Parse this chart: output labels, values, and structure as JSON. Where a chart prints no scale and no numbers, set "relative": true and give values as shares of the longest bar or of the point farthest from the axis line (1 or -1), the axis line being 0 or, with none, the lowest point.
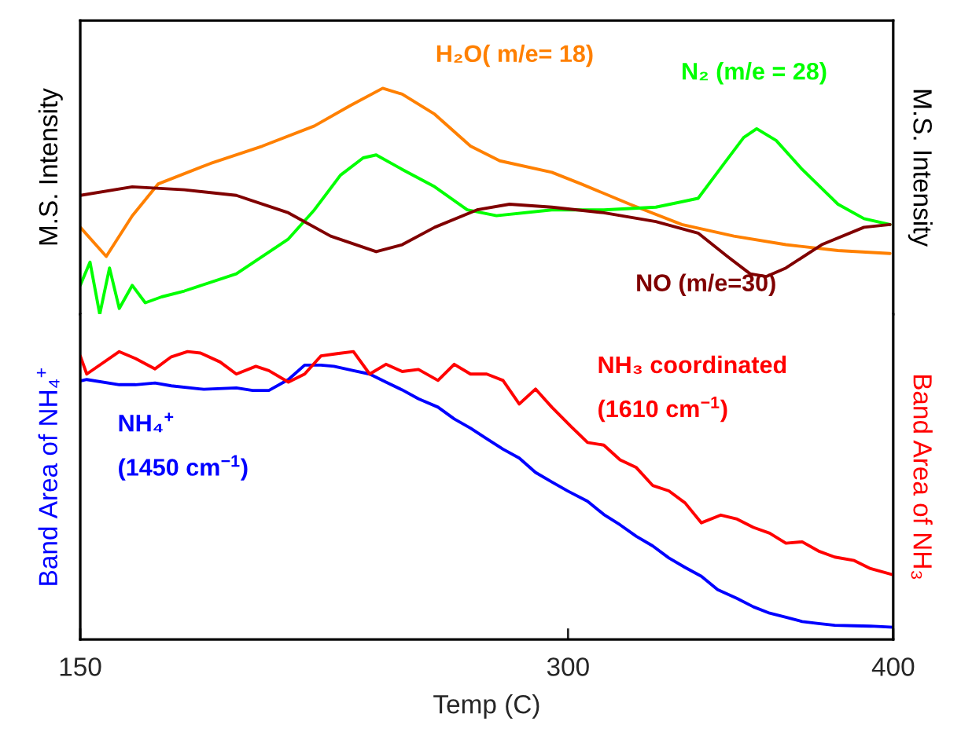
{
  "chart_data": [
    {
      "type": "line",
      "relative": true,
      "ylabel": "M.S. Intensity",
      "y2label": "M.S. Intensity",
      "xlim": [
        150,
        400
      ],
      "tick_labels": false,
      "series": [
        {
          "name": "H₂O( m/e= 18)",
          "color": "#ff8000",
          "x": [
            150,
            158,
            166,
            174,
            190,
            206,
            222,
            233,
            243,
            249,
            259,
            270,
            279,
            295,
            304,
            319,
            335,
            351,
            367,
            383,
            399
          ],
          "values": [
            0.385,
            0.256,
            0.436,
            0.577,
            0.667,
            0.744,
            0.833,
            0.923,
            1,
            0.974,
            0.885,
            0.744,
            0.679,
            0.628,
            0.577,
            0.487,
            0.397,
            0.346,
            0.308,
            0.282,
            0.269
          ]
        },
        {
          "name": "N₂ (m/e = 28)",
          "color": "#00ff00",
          "x": [
            150,
            153,
            156,
            159,
            162,
            166,
            170,
            175,
            182,
            198,
            214,
            222,
            230,
            237,
            241,
            249,
            259,
            269,
            278,
            295,
            311,
            327,
            340,
            348,
            354,
            358,
            364,
            372,
            383,
            391,
            399
          ],
          "values": [
            0.128,
            0.231,
            0,
            0.205,
            0.026,
            0.128,
            0.051,
            0.077,
            0.103,
            0.179,
            0.333,
            0.462,
            0.615,
            0.692,
            0.705,
            0.641,
            0.564,
            0.462,
            0.436,
            0.462,
            0.462,
            0.474,
            0.513,
            0.667,
            0.782,
            0.821,
            0.769,
            0.641,
            0.487,
            0.423,
            0.397
          ]
        },
        {
          "name": "NO (m/e=30)",
          "color": "#800000",
          "x": [
            150,
            166,
            182,
            198,
            214,
            227,
            241,
            249,
            259,
            272,
            282,
            295,
            311,
            327,
            340,
            349,
            356,
            361,
            367,
            378,
            391,
            399
          ],
          "values": [
            0.526,
            0.564,
            0.551,
            0.526,
            0.449,
            0.346,
            0.277,
            0.308,
            0.385,
            0.462,
            0.487,
            0.474,
            0.449,
            0.41,
            0.359,
            0.256,
            0.179,
            0.167,
            0.205,
            0.308,
            0.385,
            0.397
          ]
        }
      ]
    },
    {
      "type": "line",
      "relative": true,
      "xlabel": "Temp (C)",
      "ylabel": "Band Area of NH₄$^{+}$",
      "y2label": "Band Area of NH₃",
      "xlim": [
        150,
        400
      ],
      "xticks": [
        150,
        300,
        400
      ],
      "tick_labels": "x",
      "series": [
        {
          "name": "NH₄$^{+}$\n(1450 cm$^{−1}$)",
          "color": "#0000ff",
          "x": [
            150,
            152,
            162,
            167,
            173,
            178,
            188,
            198,
            203,
            208,
            214,
            219,
            224,
            228,
            234,
            239,
            244,
            249,
            254,
            260,
            265,
            270,
            275,
            280,
            285,
            290,
            295,
            300,
            306,
            311,
            316,
            321,
            326,
            331,
            336,
            341,
            346,
            352,
            357,
            362,
            367,
            372,
            377,
            382,
            388,
            393,
            400
          ],
          "values": [
            0.898,
            0.903,
            0.885,
            0.885,
            0.891,
            0.881,
            0.869,
            0.874,
            0.865,
            0.865,
            0.903,
            0.953,
            0.953,
            0.949,
            0.934,
            0.922,
            0.894,
            0.867,
            0.836,
            0.807,
            0.766,
            0.734,
            0.697,
            0.661,
            0.63,
            0.58,
            0.547,
            0.515,
            0.48,
            0.434,
            0.398,
            0.358,
            0.325,
            0.283,
            0.25,
            0.219,
            0.173,
            0.142,
            0.113,
            0.091,
            0.077,
            0.062,
            0.055,
            0.049,
            0.047,
            0.046,
            0.042
          ]
        },
        {
          "name": "NH₃ coordinated\n(1610 cm$^{−1}$)",
          "color": "#ff0000",
          "axis": "y2",
          "x": [
            150,
            152,
            162,
            167,
            173,
            178,
            183,
            187,
            193,
            198,
            204,
            208,
            214,
            219,
            224,
            229,
            234,
            239,
            244,
            249,
            254,
            260,
            265,
            270,
            275,
            280,
            285,
            290,
            295,
            301,
            306,
            311,
            316,
            321,
            326,
            331,
            336,
            341,
            347,
            352,
            357,
            362,
            367,
            372,
            377,
            382,
            388,
            393,
            400
          ],
          "values": [
            0.985,
            0.922,
            1,
            0.976,
            0.94,
            0.982,
            1,
            0.995,
            0.964,
            0.922,
            0.949,
            0.934,
            0.894,
            0.922,
            0.985,
            0.993,
            1,
            0.922,
            0.956,
            0.931,
            0.938,
            0.9,
            0.956,
            0.922,
            0.922,
            0.9,
            0.818,
            0.87,
            0.807,
            0.739,
            0.684,
            0.675,
            0.624,
            0.597,
            0.535,
            0.516,
            0.474,
            0.405,
            0.432,
            0.418,
            0.389,
            0.369,
            0.334,
            0.339,
            0.307,
            0.286,
            0.274,
            0.246,
            0.224
          ]
        }
      ]
    }
  ]
}
